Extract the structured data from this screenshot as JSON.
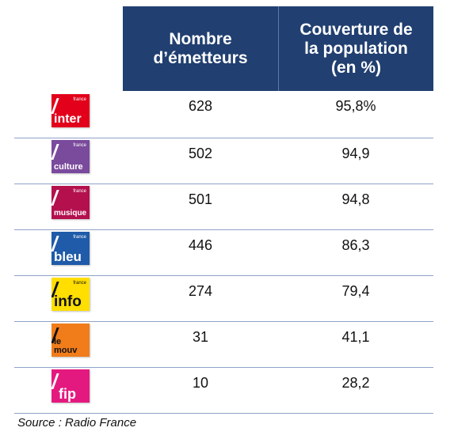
{
  "header": {
    "col1": "Nombre\nd’émetteurs",
    "col2": "Couverture de\nla population\n(en %)"
  },
  "rows": [
    {
      "logo_big": "inter",
      "logo_small": "france",
      "emitters": "628",
      "coverage": "95,8%",
      "logo_color": "#e2001a"
    },
    {
      "logo_big": "culture",
      "logo_small": "france",
      "emitters": "502",
      "coverage": "94,9",
      "logo_color": "#7a4a9c"
    },
    {
      "logo_big": "musique",
      "logo_small": "france",
      "emitters": "501",
      "coverage": "94,8",
      "logo_color": "#b4104e"
    },
    {
      "logo_big": "bleu",
      "logo_small": "france",
      "emitters": "446",
      "coverage": "86,3",
      "logo_color": "#1f5ba8"
    },
    {
      "logo_big": "info",
      "logo_small": "france",
      "emitters": "274",
      "coverage": "79,4",
      "logo_color": "#ffde00"
    },
    {
      "logo_big": "le mouv",
      "logo_small": "",
      "emitters": "31",
      "coverage": "41,1",
      "logo_color": "#f07c1a"
    },
    {
      "logo_big": "fip",
      "logo_small": "",
      "emitters": "10",
      "coverage": "28,2",
      "logo_color": "#e4197f"
    }
  ],
  "source": "Source : Radio France"
}
